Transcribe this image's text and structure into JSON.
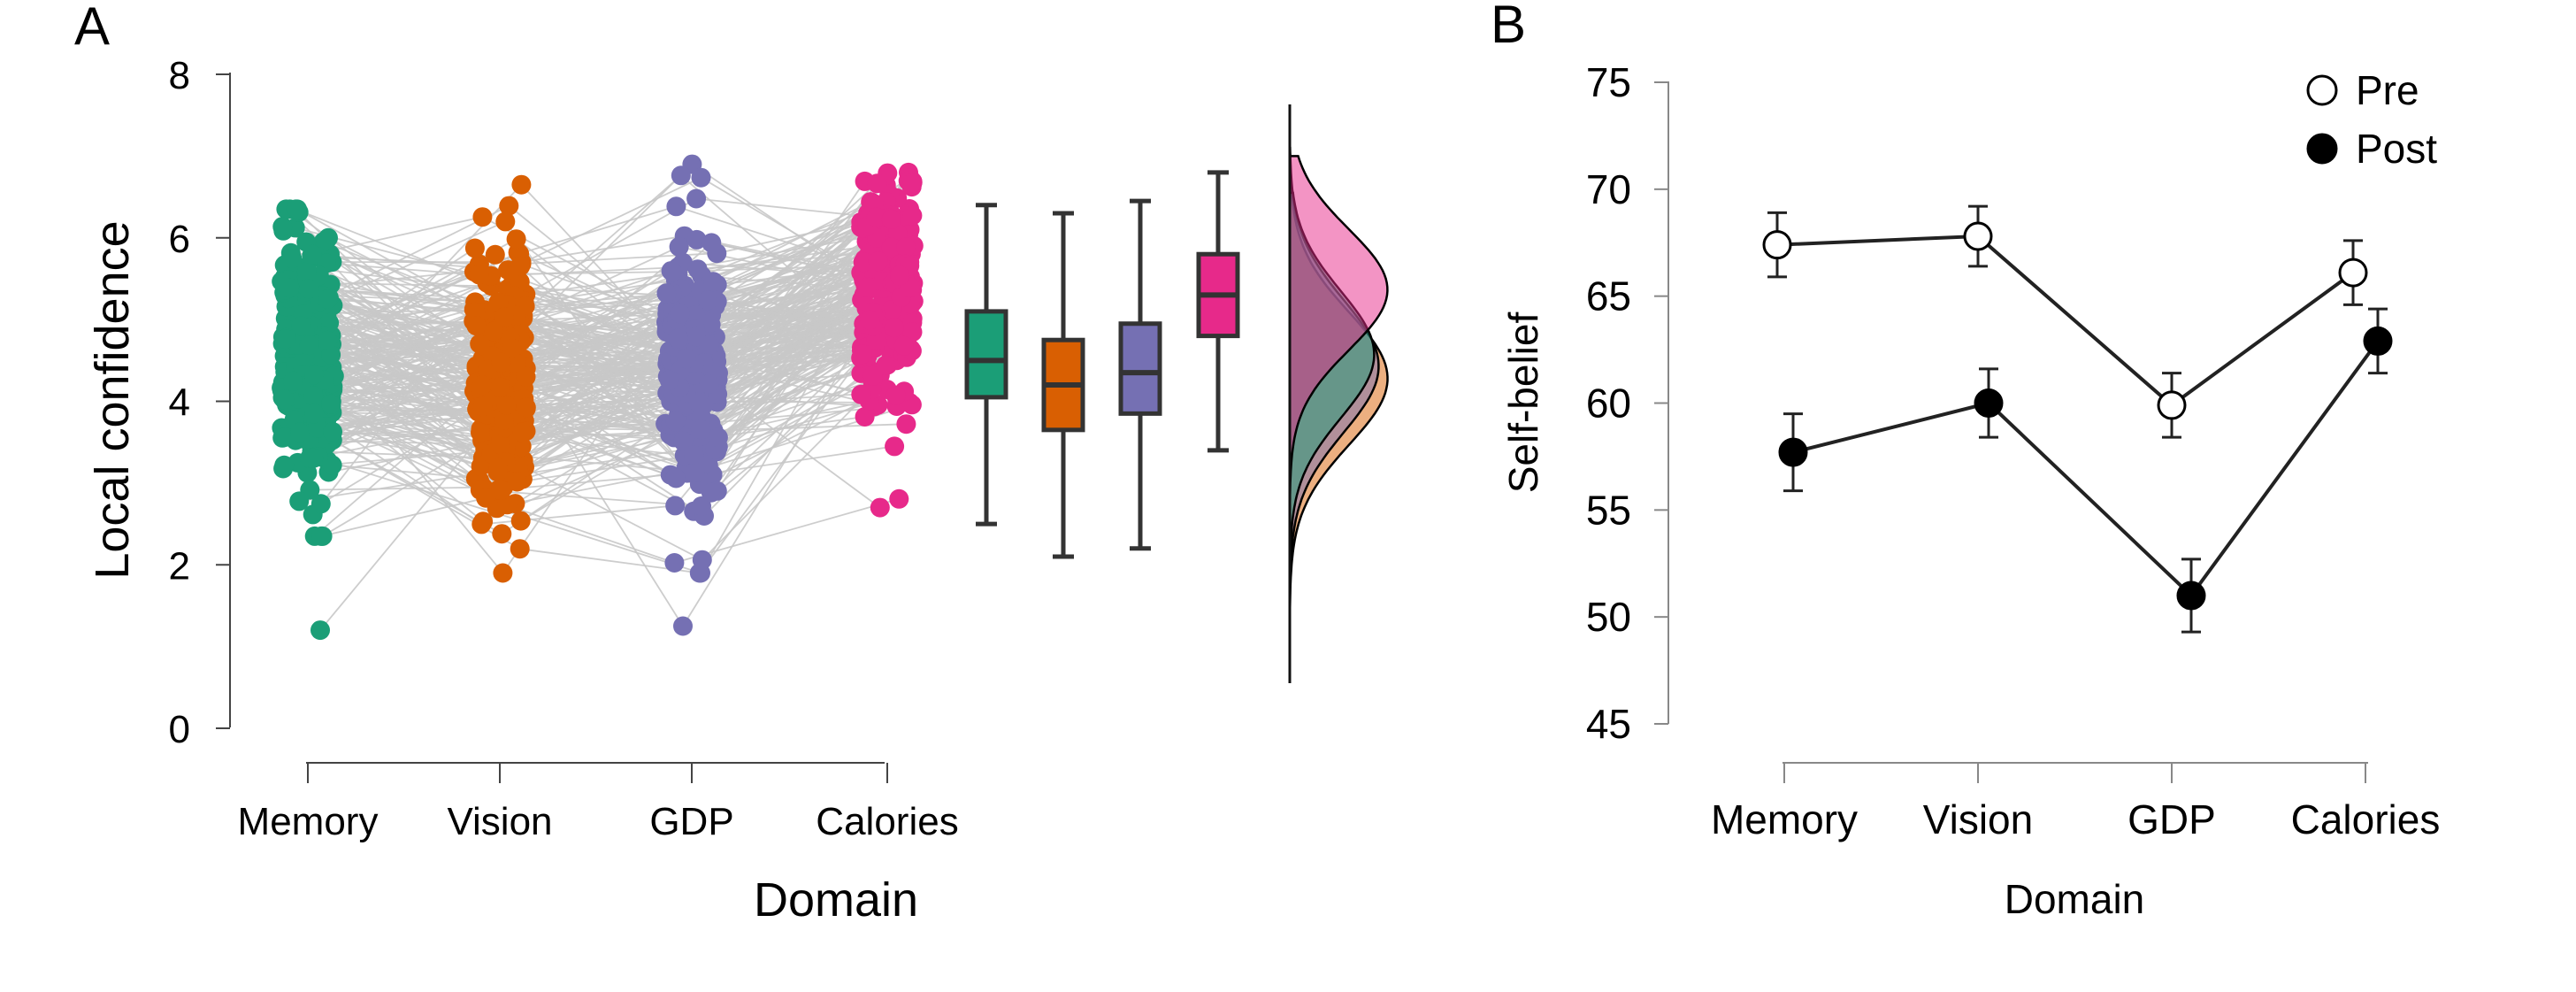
{
  "colors": {
    "memory": "#1b9e77",
    "vision": "#d95f02",
    "gdp": "#7570b3",
    "calories": "#e7298a",
    "lines": "#c8c8c8",
    "axis": "#333333",
    "black": "#000000"
  },
  "chart_data": [
    {
      "id": "A",
      "panel_label": "A",
      "type": "scatter",
      "subtype": "raincloud (jittered points with per-participant lines, boxplots, densities)",
      "title": "",
      "xlabel": "Domain",
      "ylabel": "Local confidence",
      "categories": [
        "Memory",
        "Vision",
        "GDP",
        "Calories"
      ],
      "ylim": [
        0,
        8
      ],
      "yticks": [
        0,
        2,
        4,
        6,
        8
      ],
      "ytick_labels": [
        "0",
        "2",
        "4",
        "6",
        "8"
      ],
      "n_participants_approx": 250,
      "series": [
        {
          "name": "Memory",
          "color": "#1b9e77",
          "min": 1.2,
          "q1": 4.05,
          "median": 4.5,
          "q3": 5.1,
          "max": 6.4,
          "whisker_low": 2.5,
          "whisker_high": 6.4,
          "jitter_min": 2.35,
          "jitter_max": 6.35
        },
        {
          "name": "Vision",
          "color": "#d95f02",
          "min": 1.9,
          "q1": 3.65,
          "median": 4.2,
          "q3": 4.75,
          "max": 6.65,
          "whisker_low": 2.1,
          "whisker_high": 6.3,
          "jitter_min": 1.9,
          "jitter_max": 6.65
        },
        {
          "name": "GDP",
          "color": "#7570b3",
          "min": 1.25,
          "q1": 3.85,
          "median": 4.35,
          "q3": 4.95,
          "max": 6.9,
          "whisker_low": 2.2,
          "whisker_high": 6.45,
          "jitter_min": 1.9,
          "jitter_max": 6.9
        },
        {
          "name": "Calories",
          "color": "#e7298a",
          "min": 2.7,
          "q1": 4.8,
          "median": 5.3,
          "q3": 5.8,
          "max": 6.8,
          "whisker_low": 3.4,
          "whisker_high": 6.8,
          "jitter_min": 2.7,
          "jitter_max": 6.8
        }
      ],
      "outliers": [
        {
          "category": "Memory",
          "value": 1.2
        },
        {
          "category": "GDP",
          "value": 1.25
        }
      ]
    },
    {
      "id": "B",
      "panel_label": "B",
      "type": "line",
      "title": "",
      "xlabel": "Domain",
      "ylabel": "Self-belief",
      "categories": [
        "Memory",
        "Vision",
        "GDP",
        "Calories"
      ],
      "ylim": [
        45,
        75
      ],
      "yticks": [
        45,
        50,
        55,
        60,
        65,
        70,
        75
      ],
      "ytick_labels": [
        "45",
        "50",
        "55",
        "60",
        "65",
        "70",
        "75"
      ],
      "legend": {
        "position": "top-right",
        "entries": [
          "Pre",
          "Post"
        ]
      },
      "series": [
        {
          "name": "Pre",
          "marker": "open-circle",
          "values": [
            67.4,
            67.8,
            59.9,
            66.1
          ],
          "errors": [
            1.5,
            1.4,
            1.5,
            1.5
          ]
        },
        {
          "name": "Post",
          "marker": "filled-circle",
          "values": [
            57.7,
            60.0,
            51.0,
            62.9
          ],
          "errors": [
            1.8,
            1.6,
            1.7,
            1.5
          ]
        }
      ]
    }
  ]
}
